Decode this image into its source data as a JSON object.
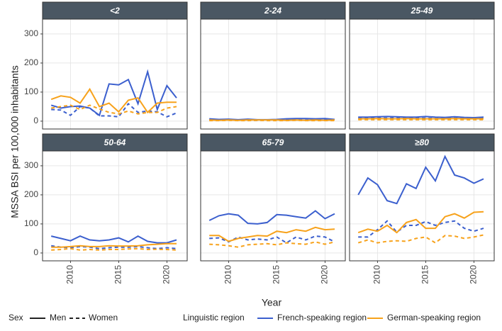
{
  "y_label": "MSSA BSI per 100,000 inhabitants",
  "x_label": "Year",
  "legend": {
    "sex_title": "Sex",
    "sex": [
      {
        "label": "Men",
        "dash": false
      },
      {
        "label": "Women",
        "dash": true
      }
    ],
    "region_title": "Linguistic region",
    "regions": [
      {
        "label": "French-speaking region",
        "color": "#3b5fce"
      },
      {
        "label": "German-speaking region",
        "color": "#f7a21b"
      }
    ]
  },
  "chart_data": [
    {
      "type": "line",
      "title": "<2",
      "x": [
        2008,
        2009,
        2010,
        2011,
        2012,
        2013,
        2014,
        2015,
        2016,
        2017,
        2018,
        2019,
        2020,
        2021
      ],
      "xlim": [
        2007.1,
        2022.1
      ],
      "xticks": [
        2010,
        2015,
        2020
      ],
      "ylim": [
        -27,
        351
      ],
      "yticks": [
        0,
        100,
        200,
        300
      ],
      "grid": true,
      "series": [
        {
          "color": "#3b5fce",
          "dash": false,
          "values": [
            55,
            45,
            50,
            52,
            45,
            20,
            128,
            125,
            143,
            60,
            170,
            40,
            122,
            80
          ]
        },
        {
          "color": "#3b5fce",
          "dash": true,
          "values": [
            40,
            38,
            20,
            50,
            45,
            18,
            18,
            15,
            60,
            30,
            35,
            32,
            15,
            28
          ]
        },
        {
          "color": "#f7a21b",
          "dash": false,
          "values": [
            75,
            87,
            82,
            62,
            110,
            50,
            62,
            32,
            72,
            80,
            30,
            62,
            65,
            65
          ]
        },
        {
          "color": "#f7a21b",
          "dash": true,
          "values": [
            45,
            50,
            55,
            40,
            55,
            42,
            30,
            25,
            35,
            25,
            30,
            30,
            45,
            50
          ]
        }
      ]
    },
    {
      "type": "line",
      "title": "2-24",
      "x": [
        2008,
        2009,
        2010,
        2011,
        2012,
        2013,
        2014,
        2015,
        2016,
        2017,
        2018,
        2019,
        2020,
        2021
      ],
      "xlim": [
        2007.1,
        2022.1
      ],
      "xticks": [
        2010,
        2015,
        2020
      ],
      "ylim": [
        -27,
        351
      ],
      "yticks": [
        0,
        100,
        200,
        300
      ],
      "grid": true,
      "series": [
        {
          "color": "#3b5fce",
          "dash": false,
          "values": [
            8,
            6,
            7,
            5,
            7,
            5,
            5,
            6,
            8,
            9,
            9,
            8,
            9,
            6
          ]
        },
        {
          "color": "#3b5fce",
          "dash": true,
          "values": [
            5,
            4,
            5,
            4,
            3,
            3,
            4,
            4,
            5,
            5,
            4,
            5,
            5,
            4
          ]
        },
        {
          "color": "#f7a21b",
          "dash": false,
          "values": [
            4,
            3,
            4,
            3,
            4,
            4,
            4,
            4,
            3,
            4,
            3,
            4,
            3,
            4
          ]
        },
        {
          "color": "#f7a21b",
          "dash": true,
          "values": [
            2,
            2,
            3,
            2,
            2,
            3,
            2,
            2,
            2,
            3,
            2,
            2,
            2,
            2
          ]
        }
      ]
    },
    {
      "type": "line",
      "title": "25-49",
      "x": [
        2008,
        2009,
        2010,
        2011,
        2012,
        2013,
        2014,
        2015,
        2016,
        2017,
        2018,
        2019,
        2020,
        2021
      ],
      "xlim": [
        2007.1,
        2022.1
      ],
      "xticks": [
        2010,
        2015,
        2020
      ],
      "ylim": [
        -27,
        351
      ],
      "yticks": [
        0,
        100,
        200,
        300
      ],
      "grid": true,
      "series": [
        {
          "color": "#3b5fce",
          "dash": false,
          "values": [
            14,
            14,
            15,
            16,
            15,
            14,
            14,
            16,
            14,
            13,
            15,
            13,
            12,
            14
          ]
        },
        {
          "color": "#3b5fce",
          "dash": true,
          "values": [
            10,
            10,
            11,
            10,
            11,
            10,
            10,
            10,
            9,
            10,
            10,
            9,
            9,
            10
          ]
        },
        {
          "color": "#f7a21b",
          "dash": false,
          "values": [
            8,
            8,
            9,
            8,
            8,
            9,
            8,
            8,
            8,
            8,
            9,
            8,
            8,
            8
          ]
        },
        {
          "color": "#f7a21b",
          "dash": true,
          "values": [
            5,
            5,
            5,
            5,
            5,
            5,
            5,
            5,
            5,
            5,
            5,
            5,
            5,
            5
          ]
        }
      ]
    },
    {
      "type": "line",
      "title": "50-64",
      "x": [
        2008,
        2009,
        2010,
        2011,
        2012,
        2013,
        2014,
        2015,
        2016,
        2017,
        2018,
        2019,
        2020,
        2021
      ],
      "xlim": [
        2007.1,
        2022.1
      ],
      "xticks": [
        2010,
        2015,
        2020
      ],
      "ylim": [
        -27,
        351
      ],
      "yticks": [
        0,
        100,
        200,
        300
      ],
      "grid": true,
      "series": [
        {
          "color": "#3b5fce",
          "dash": false,
          "values": [
            58,
            50,
            42,
            58,
            45,
            42,
            45,
            52,
            38,
            58,
            40,
            35,
            35,
            45
          ]
        },
        {
          "color": "#3b5fce",
          "dash": true,
          "values": [
            25,
            20,
            18,
            22,
            20,
            15,
            18,
            20,
            20,
            22,
            18,
            15,
            18,
            15
          ]
        },
        {
          "color": "#f7a21b",
          "dash": false,
          "values": [
            20,
            20,
            22,
            25,
            22,
            22,
            25,
            24,
            24,
            25,
            28,
            30,
            32,
            32
          ]
        },
        {
          "color": "#f7a21b",
          "dash": true,
          "values": [
            10,
            12,
            15,
            10,
            12,
            10,
            12,
            12,
            14,
            15,
            12,
            13,
            12,
            10
          ]
        }
      ]
    },
    {
      "type": "line",
      "title": "65-79",
      "x": [
        2008,
        2009,
        2010,
        2011,
        2012,
        2013,
        2014,
        2015,
        2016,
        2017,
        2018,
        2019,
        2020,
        2021
      ],
      "xlim": [
        2007.1,
        2022.1
      ],
      "xticks": [
        2010,
        2015,
        2020
      ],
      "ylim": [
        -27,
        351
      ],
      "yticks": [
        0,
        100,
        200,
        300
      ],
      "grid": true,
      "series": [
        {
          "color": "#3b5fce",
          "dash": false,
          "values": [
            112,
            128,
            135,
            130,
            102,
            100,
            105,
            132,
            130,
            125,
            120,
            145,
            118,
            135
          ]
        },
        {
          "color": "#3b5fce",
          "dash": true,
          "values": [
            50,
            52,
            38,
            55,
            45,
            48,
            45,
            55,
            35,
            55,
            45,
            58,
            55,
            38
          ]
        },
        {
          "color": "#f7a21b",
          "dash": false,
          "values": [
            60,
            60,
            40,
            50,
            55,
            60,
            58,
            75,
            70,
            80,
            75,
            88,
            80,
            82
          ]
        },
        {
          "color": "#f7a21b",
          "dash": true,
          "values": [
            30,
            28,
            25,
            20,
            28,
            30,
            32,
            28,
            35,
            32,
            30,
            38,
            30,
            38
          ]
        }
      ]
    },
    {
      "type": "line",
      "title": "≥80",
      "x": [
        2008,
        2009,
        2010,
        2011,
        2012,
        2013,
        2014,
        2015,
        2016,
        2017,
        2018,
        2019,
        2020,
        2021
      ],
      "xlim": [
        2007.1,
        2022.1
      ],
      "xticks": [
        2010,
        2015,
        2020
      ],
      "ylim": [
        -27,
        351
      ],
      "yticks": [
        0,
        100,
        200,
        300
      ],
      "grid": true,
      "series": [
        {
          "color": "#3b5fce",
          "dash": false,
          "values": [
            200,
            258,
            235,
            180,
            170,
            238,
            222,
            295,
            248,
            332,
            268,
            258,
            240,
            255
          ]
        },
        {
          "color": "#3b5fce",
          "dash": true,
          "values": [
            55,
            55,
            80,
            110,
            72,
            95,
            95,
            108,
            95,
            105,
            110,
            85,
            75,
            85
          ]
        },
        {
          "color": "#f7a21b",
          "dash": false,
          "values": [
            70,
            82,
            75,
            95,
            70,
            105,
            115,
            85,
            85,
            125,
            135,
            120,
            140,
            142
          ]
        },
        {
          "color": "#f7a21b",
          "dash": true,
          "values": [
            35,
            45,
            35,
            40,
            42,
            40,
            50,
            55,
            35,
            60,
            58,
            50,
            55,
            62
          ]
        }
      ]
    }
  ]
}
